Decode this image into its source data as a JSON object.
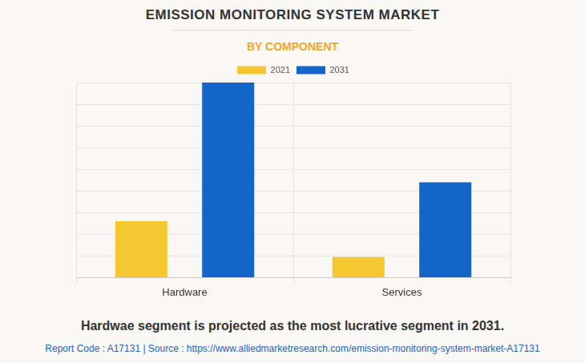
{
  "chart_data": {
    "type": "bar",
    "title": "EMISSION MONITORING SYSTEM MARKET",
    "subtitle": "BY COMPONENT",
    "categories": [
      "Hardware",
      "Services"
    ],
    "series": [
      {
        "name": "2021",
        "color": "#f5c832",
        "values": [
          2.6,
          0.95
        ]
      },
      {
        "name": "2031",
        "color": "#1565c8",
        "values": [
          9.0,
          4.4
        ]
      }
    ],
    "ylim": [
      0,
      9
    ],
    "yticks": [
      0,
      1,
      2,
      3,
      4,
      5,
      6,
      7,
      8,
      9
    ],
    "grid": true,
    "legend": "top",
    "tick_labels": "x",
    "caption": "Hardwae segment is projected as the most lucrative segment in 2031.",
    "source": "Report Code : A17131  |  Source : https://www.alliedmarketresearch.com/emission-monitoring-system-market-A17131"
  }
}
